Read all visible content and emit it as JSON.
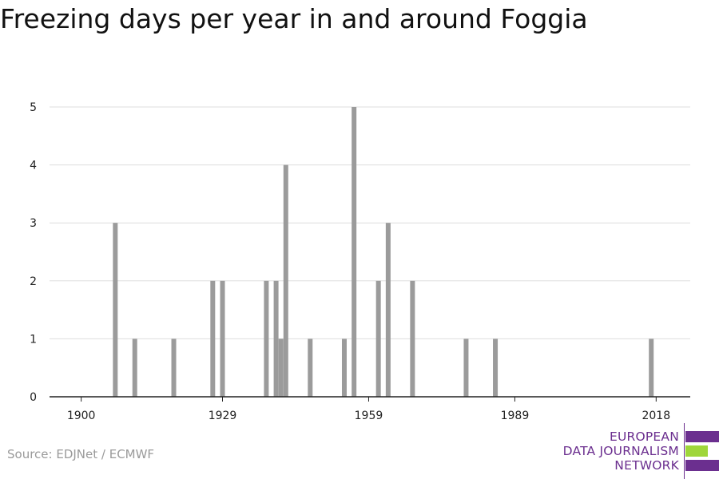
{
  "header": {
    "title": "Freezing days per year in and around Foggia"
  },
  "footer": {
    "source": "Source: EDJNet / ECMWF"
  },
  "logo": {
    "lines": [
      "EUROPEAN",
      "DATA JOURNALISM",
      "NETWORK"
    ],
    "colors": {
      "purple": "#6b2f8f",
      "green": "#9fd63a"
    }
  },
  "colors": {
    "bar": "#9b9b9b",
    "grid": "#dddddd",
    "axis": "#222222"
  },
  "chart_data": {
    "type": "bar",
    "title": "Freezing days per year in and around Foggia",
    "xlabel": "",
    "ylabel": "",
    "x_ticks": [
      1900,
      1929,
      1959,
      1989,
      2018
    ],
    "y_ticks": [
      0,
      1,
      2,
      3,
      4,
      5
    ],
    "xlim": [
      1893.5,
      2025
    ],
    "ylim": [
      0,
      5
    ],
    "grid": true,
    "legend": "none",
    "x": [
      1907,
      1911,
      1919,
      1927,
      1929,
      1938,
      1940,
      1941,
      1942,
      1947,
      1954,
      1956,
      1961,
      1963,
      1968,
      1979,
      1985,
      2017
    ],
    "values": [
      3,
      1,
      1,
      2,
      2,
      2,
      2,
      1,
      4,
      1,
      1,
      5,
      2,
      3,
      2,
      1,
      1,
      1
    ]
  }
}
